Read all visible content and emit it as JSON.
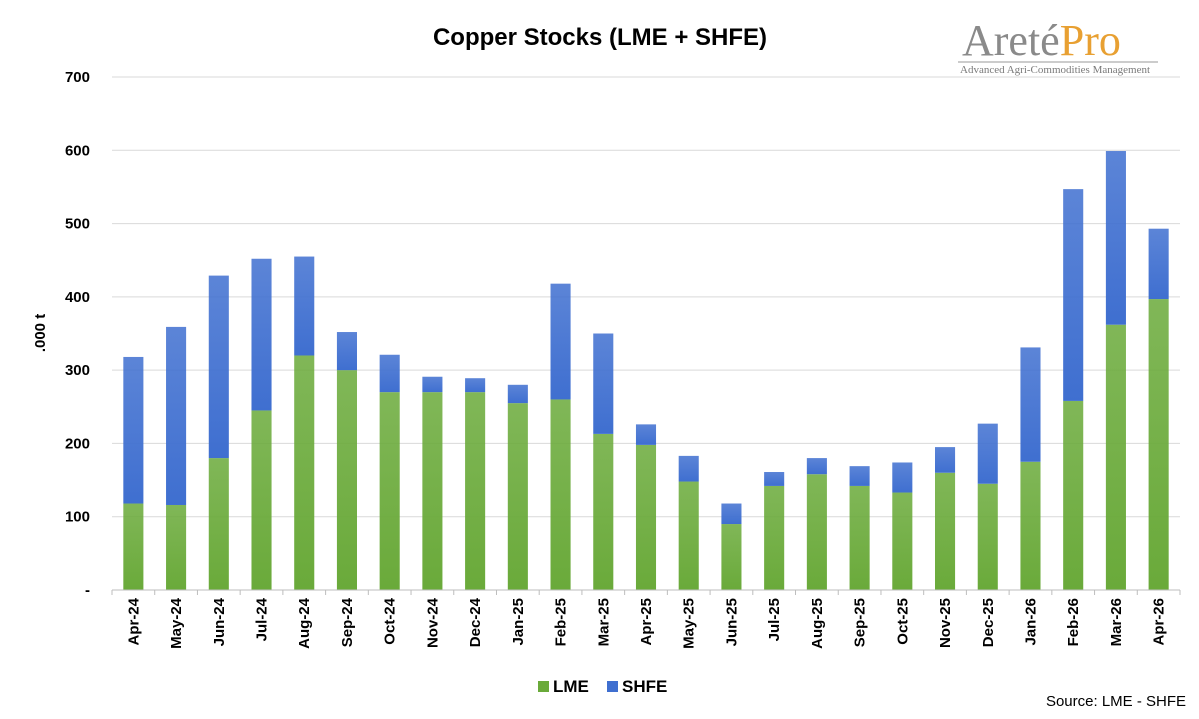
{
  "chart_data": {
    "type": "bar",
    "stacked": true,
    "title": "Copper Stocks (LME + SHFE)",
    "ylabel": ".000 t",
    "xlabel": "",
    "ylim": [
      0,
      700
    ],
    "yticks": [
      {
        "value": 0,
        "label": "-"
      },
      {
        "value": 100,
        "label": "100"
      },
      {
        "value": 200,
        "label": "200"
      },
      {
        "value": 300,
        "label": "300"
      },
      {
        "value": 400,
        "label": "400"
      },
      {
        "value": 500,
        "label": "500"
      },
      {
        "value": 600,
        "label": "600"
      },
      {
        "value": 700,
        "label": "700"
      }
    ],
    "grid": true,
    "legend_position": "bottom",
    "categories": [
      "Apr-24",
      "May-24",
      "Jun-24",
      "Jul-24",
      "Aug-24",
      "Sep-24",
      "Oct-24",
      "Nov-24",
      "Dec-24",
      "Jan-25",
      "Feb-25",
      "Mar-25",
      "Apr-25",
      "May-25",
      "Jun-25",
      "Jul-25",
      "Aug-25",
      "Sep-25",
      "Oct-25",
      "Nov-25",
      "Dec-25",
      "Jan-26",
      "Feb-26",
      "Mar-26",
      "Apr-26"
    ],
    "series": [
      {
        "name": "LME",
        "color": "#6aaa3a",
        "values": [
          118,
          116,
          180,
          245,
          320,
          300,
          270,
          270,
          270,
          255,
          260,
          213,
          198,
          148,
          90,
          142,
          158,
          142,
          133,
          160,
          145,
          175,
          258,
          362,
          397
        ]
      },
      {
        "name": "SHFE",
        "color": "#3f6fd0",
        "values": [
          200,
          243,
          249,
          207,
          135,
          52,
          51,
          21,
          19,
          25,
          158,
          137,
          28,
          35,
          28,
          19,
          22,
          27,
          41,
          35,
          82,
          156,
          289,
          237,
          96
        ]
      }
    ]
  },
  "logo": {
    "main": "Areté",
    "accent": "Pro",
    "tagline": "Advanced Agri-Commodities Management"
  },
  "source": "Source: LME - SHFE"
}
